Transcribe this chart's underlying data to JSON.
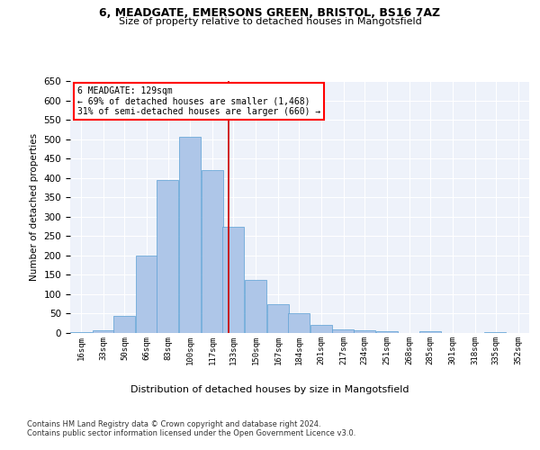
{
  "title1": "6, MEADGATE, EMERSONS GREEN, BRISTOL, BS16 7AZ",
  "title2": "Size of property relative to detached houses in Mangotsfield",
  "xlabel": "Distribution of detached houses by size in Mangotsfield",
  "ylabel": "Number of detached properties",
  "bar_color": "#aec6e8",
  "bar_edge_color": "#5a9fd4",
  "background_color": "#eef2fa",
  "grid_color": "#ffffff",
  "annotation_text": "6 MEADGATE: 129sqm\n← 69% of detached houses are smaller (1,468)\n31% of semi-detached houses are larger (660) →",
  "vline_x": 129,
  "vline_color": "#cc0000",
  "categories": [
    "16sqm",
    "33sqm",
    "50sqm",
    "66sqm",
    "83sqm",
    "100sqm",
    "117sqm",
    "133sqm",
    "150sqm",
    "167sqm",
    "184sqm",
    "201sqm",
    "217sqm",
    "234sqm",
    "251sqm",
    "268sqm",
    "285sqm",
    "301sqm",
    "318sqm",
    "335sqm",
    "352sqm"
  ],
  "values": [
    3,
    8,
    45,
    200,
    395,
    505,
    420,
    275,
    138,
    75,
    52,
    22,
    10,
    7,
    5,
    0,
    5,
    0,
    0,
    2,
    0
  ],
  "bin_edges": [
    8,
    25,
    41,
    58,
    74,
    91,
    108,
    124,
    141,
    158,
    174,
    191,
    208,
    224,
    241,
    258,
    274,
    291,
    308,
    324,
    341,
    358
  ],
  "ylim": [
    0,
    650
  ],
  "yticks": [
    0,
    50,
    100,
    150,
    200,
    250,
    300,
    350,
    400,
    450,
    500,
    550,
    600,
    650
  ],
  "footer1": "Contains HM Land Registry data © Crown copyright and database right 2024.",
  "footer2": "Contains public sector information licensed under the Open Government Licence v3.0."
}
